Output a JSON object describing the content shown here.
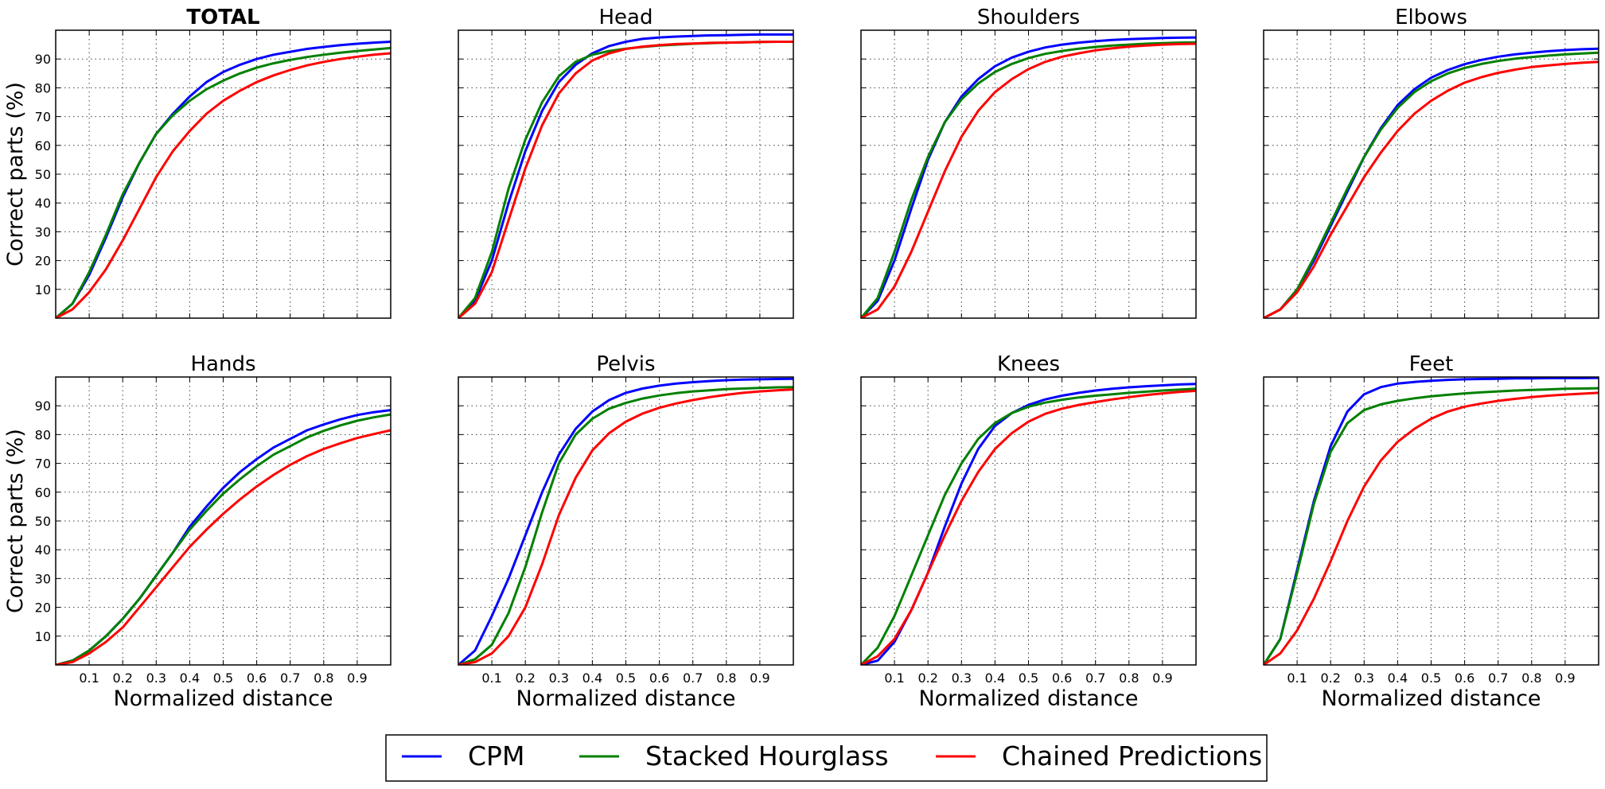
{
  "chart_data": {
    "type": "line",
    "x_tick_labels": [
      "0.1",
      "0.2",
      "0.3",
      "0.4",
      "0.5",
      "0.6",
      "0.7",
      "0.8",
      "0.9"
    ],
    "y_tick_labels": [
      "10",
      "20",
      "30",
      "40",
      "50",
      "60",
      "70",
      "80",
      "90"
    ],
    "xlim": [
      0,
      1
    ],
    "ylim": [
      0,
      100
    ],
    "grid": true,
    "xlabel": "Normalized distance",
    "ylabel": "Correct parts (%)",
    "x": [
      0,
      0.05,
      0.1,
      0.15,
      0.2,
      0.25,
      0.3,
      0.35,
      0.4,
      0.45,
      0.5,
      0.55,
      0.6,
      0.65,
      0.7,
      0.75,
      0.8,
      0.85,
      0.9,
      0.95,
      1.0
    ],
    "legend": {
      "placement": "bottom-center",
      "entries": [
        {
          "name": "CPM",
          "color": "#0000ff"
        },
        {
          "name": "Stacked Hourglass",
          "color": "#008000"
        },
        {
          "name": "Chained Predictions",
          "color": "#ff0000"
        }
      ]
    },
    "panels": [
      {
        "title": "TOTAL",
        "bold": true,
        "series": [
          {
            "name": "CPM",
            "values": [
              0,
              5,
              15,
              28,
              42,
              54,
              64,
              71,
              77,
              82,
              85.5,
              88,
              90,
              91.5,
              92.5,
              93.5,
              94.2,
              94.8,
              95.3,
              95.7,
              96
            ]
          },
          {
            "name": "Stacked Hourglass",
            "values": [
              0,
              5,
              16,
              29,
              43,
              54,
              64,
              70.5,
              75.5,
              79.5,
              82.5,
              85,
              87,
              88.5,
              89.7,
              90.7,
              91.5,
              92.2,
              92.8,
              93.3,
              93.8
            ]
          },
          {
            "name": "Chained Predictions",
            "values": [
              0,
              3,
              9,
              17,
              27,
              38,
              49,
              58,
              65,
              71,
              75.5,
              79,
              82,
              84.3,
              86.2,
              87.8,
              89,
              90,
              90.8,
              91.5,
              92
            ]
          }
        ]
      },
      {
        "title": "Head",
        "bold": false,
        "series": [
          {
            "name": "CPM",
            "values": [
              0,
              6,
              20,
              40,
              58,
              72,
              82,
              88,
              92,
              94.5,
              96,
              97,
              97.5,
              97.8,
              98,
              98.2,
              98.3,
              98.4,
              98.5,
              98.5,
              98.5
            ]
          },
          {
            "name": "Stacked Hourglass",
            "values": [
              0,
              7,
              23,
              45,
              62,
              75,
              84,
              89,
              91.5,
              92.8,
              93.6,
              94.2,
              94.7,
              95,
              95.3,
              95.5,
              95.7,
              95.8,
              95.9,
              96,
              96
            ]
          },
          {
            "name": "Chained Predictions",
            "values": [
              0,
              5,
              16,
              34,
              52,
              67,
              78,
              85,
              89.5,
              92,
              93.5,
              94.3,
              94.8,
              95.2,
              95.4,
              95.6,
              95.7,
              95.8,
              95.9,
              96,
              96
            ]
          }
        ]
      },
      {
        "title": "Shoulders",
        "bold": false,
        "series": [
          {
            "name": "CPM",
            "values": [
              0,
              6,
              20,
              38,
              55,
              68,
              77,
              83,
              87.5,
              90.5,
              92.5,
              94,
              95,
              95.7,
              96.2,
              96.6,
              96.9,
              97.1,
              97.3,
              97.4,
              97.5
            ]
          },
          {
            "name": "Stacked Hourglass",
            "values": [
              0,
              7,
              23,
              41,
              56,
              68,
              76,
              81.5,
              85.5,
              88.3,
              90.3,
              91.8,
              92.8,
              93.6,
              94.2,
              94.7,
              95,
              95.3,
              95.5,
              95.7,
              95.8
            ]
          },
          {
            "name": "Chained Predictions",
            "values": [
              0,
              3,
              11,
              23,
              37,
              51,
              63,
              72,
              78.5,
              83,
              86.5,
              89,
              90.8,
              92,
              93,
              93.7,
              94.3,
              94.7,
              95,
              95.2,
              95.3
            ]
          }
        ]
      },
      {
        "title": "Elbows",
        "bold": false,
        "series": [
          {
            "name": "CPM",
            "values": [
              0,
              3,
              10,
              20,
              32,
              44,
              56,
              66,
              74,
              79.5,
              83.5,
              86.2,
              88.2,
              89.7,
              90.8,
              91.6,
              92.2,
              92.7,
              93.1,
              93.4,
              93.6
            ]
          },
          {
            "name": "Stacked Hourglass",
            "values": [
              0,
              3,
              10,
              21,
              33,
              45,
              56,
              65.5,
              73,
              78.5,
              82.3,
              85,
              86.9,
              88.3,
              89.3,
              90.1,
              90.7,
              91.2,
              91.6,
              91.9,
              92.2
            ]
          },
          {
            "name": "Chained Predictions",
            "values": [
              0,
              3,
              9,
              18,
              29,
              39,
              49,
              57.5,
              65,
              71,
              75.5,
              79,
              81.8,
              83.7,
              85.2,
              86.3,
              87.2,
              87.8,
              88.3,
              88.7,
              89
            ]
          }
        ]
      },
      {
        "title": "Hands",
        "bold": false,
        "series": [
          {
            "name": "CPM",
            "values": [
              0,
              1.5,
              5,
              10,
              16,
              23,
              31,
              39,
              48,
              55,
              61.5,
              67,
              71.5,
              75.5,
              78.5,
              81.5,
              83.5,
              85.3,
              86.8,
              87.8,
              88.5
            ]
          },
          {
            "name": "Stacked Hourglass",
            "values": [
              0,
              1.5,
              5,
              10,
              16,
              23,
              31,
              39,
              47,
              53.5,
              59.5,
              64.5,
              69,
              73,
              76,
              79,
              81.3,
              83.2,
              84.8,
              86,
              87
            ]
          },
          {
            "name": "Chained Predictions",
            "values": [
              0,
              1,
              4,
              8,
              13,
              20,
              27,
              34,
              41,
              47,
              52.5,
              57.5,
              62,
              66,
              69.5,
              72.5,
              75,
              77,
              78.8,
              80.2,
              81.5
            ]
          }
        ]
      },
      {
        "title": "Pelvis",
        "bold": false,
        "series": [
          {
            "name": "CPM",
            "values": [
              0,
              5,
              17,
              30,
              45,
              60,
              73,
              82,
              88,
              92,
              94.5,
              96,
              97,
              97.7,
              98.2,
              98.6,
              98.9,
              99.1,
              99.2,
              99.3,
              99.4
            ]
          },
          {
            "name": "Stacked Hourglass",
            "values": [
              0,
              2,
              7,
              18,
              34,
              53,
              70,
              80,
              85.5,
              89,
              91,
              92.5,
              93.6,
              94.4,
              95,
              95.4,
              95.8,
              96,
              96.2,
              96.4,
              96.5
            ]
          },
          {
            "name": "Chained Predictions",
            "values": [
              0,
              1,
              4,
              10,
              20,
              35,
              52,
              65,
              74.5,
              80.5,
              84.5,
              87.3,
              89.3,
              90.8,
              92,
              93,
              93.8,
              94.5,
              95,
              95.4,
              95.7
            ]
          }
        ]
      },
      {
        "title": "Knees",
        "bold": false,
        "series": [
          {
            "name": "CPM",
            "values": [
              0,
              1.5,
              8,
              19,
              32,
              48,
              63,
              75,
              83,
              87.5,
              90.3,
              92.2,
              93.5,
              94.5,
              95.3,
              95.9,
              96.4,
              96.8,
              97.1,
              97.4,
              97.6
            ]
          },
          {
            "name": "Stacked Hourglass",
            "values": [
              0,
              6,
              17,
              31,
              45,
              59,
              70,
              78.5,
              84,
              87.5,
              89.7,
              91.1,
              92.1,
              92.9,
              93.5,
              94,
              94.5,
              94.9,
              95.3,
              95.6,
              95.9
            ]
          },
          {
            "name": "Chained Predictions",
            "values": [
              0,
              3,
              9,
              19,
              32,
              45,
              57,
              67,
              75,
              80.5,
              84.5,
              87.2,
              89,
              90.3,
              91.3,
              92.2,
              93,
              93.7,
              94.3,
              94.8,
              95.2
            ]
          }
        ]
      },
      {
        "title": "Feet",
        "bold": false,
        "series": [
          {
            "name": "CPM",
            "values": [
              0,
              9,
              33,
              57,
              76,
              88,
              94,
              96.5,
              97.7,
              98.3,
              98.7,
              99,
              99.2,
              99.3,
              99.4,
              99.5,
              99.5,
              99.6,
              99.6,
              99.6,
              99.7
            ]
          },
          {
            "name": "Stacked Hourglass",
            "values": [
              0,
              9,
              32,
              56,
              74,
              84,
              88.5,
              90.5,
              91.7,
              92.6,
              93.3,
              93.8,
              94.3,
              94.7,
              95,
              95.3,
              95.5,
              95.7,
              95.9,
              96,
              96.1
            ]
          },
          {
            "name": "Chained Predictions",
            "values": [
              0,
              4,
              12,
              23,
              36,
              50,
              62,
              71,
              77.5,
              82,
              85.5,
              88,
              89.7,
              90.8,
              91.7,
              92.4,
              93,
              93.5,
              93.9,
              94.2,
              94.5
            ]
          }
        ]
      }
    ]
  }
}
